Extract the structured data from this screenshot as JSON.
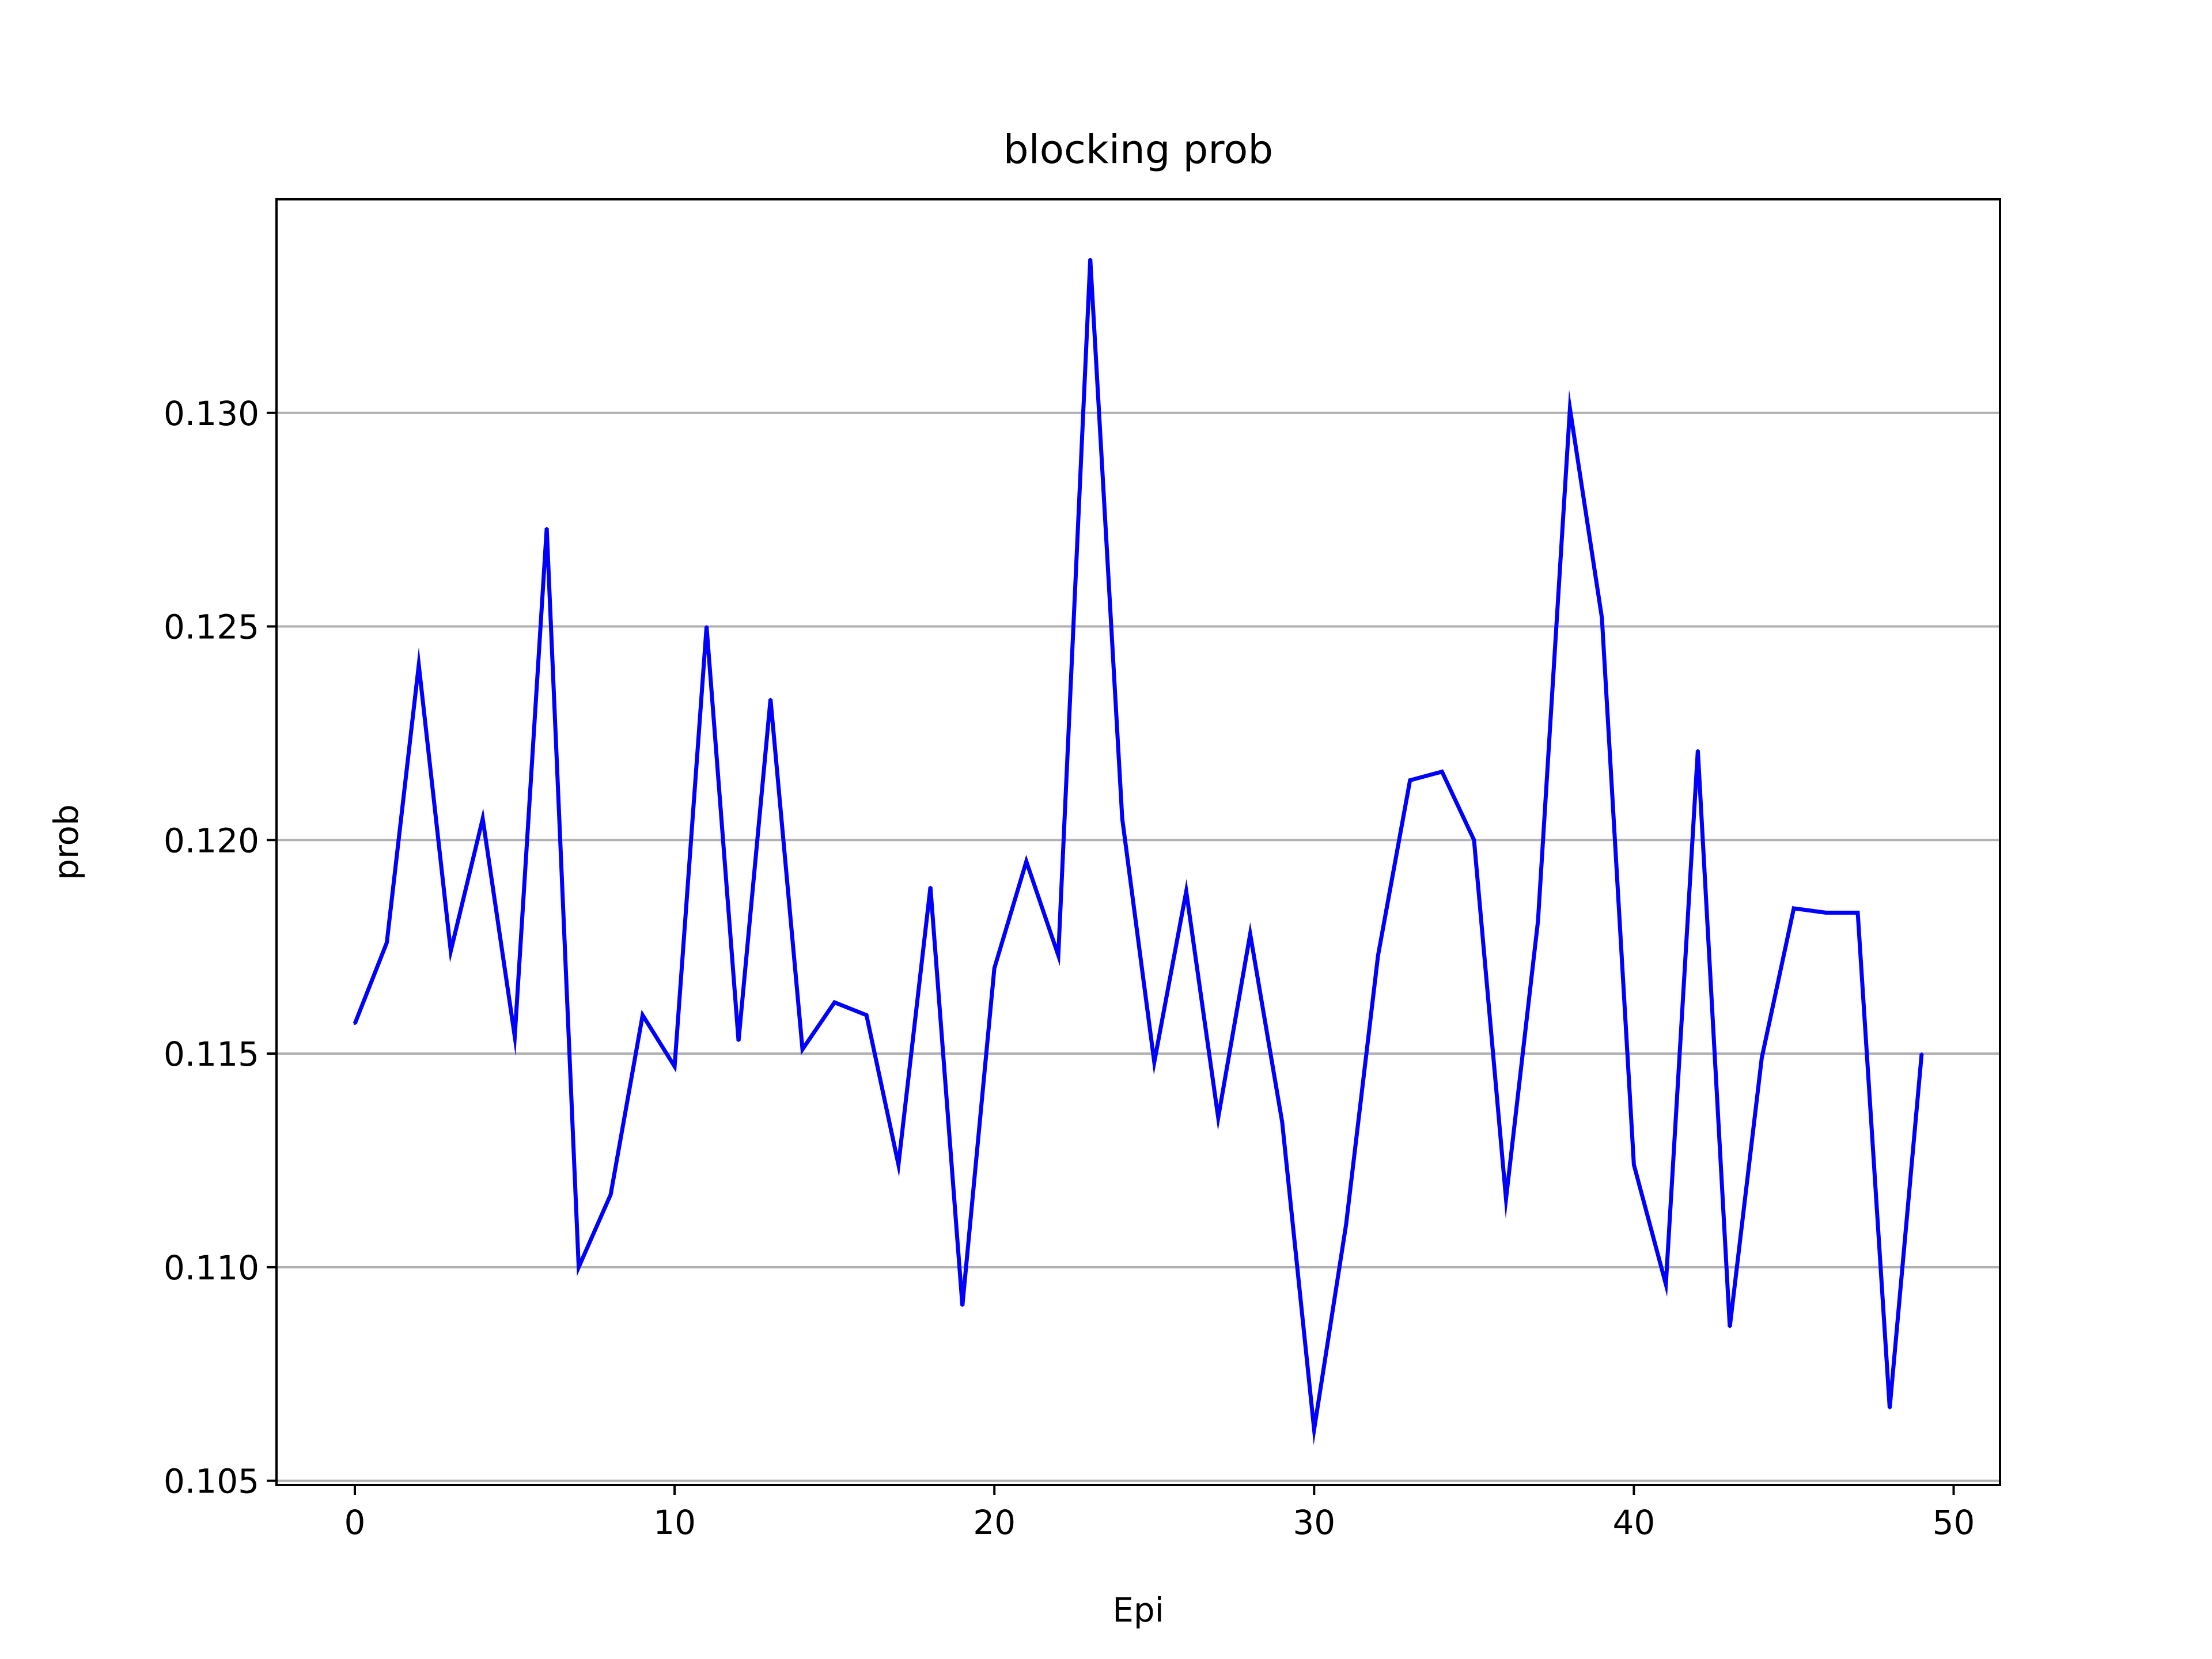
{
  "chart_data": {
    "type": "line",
    "title": "blocking prob",
    "xlabel": "Epi",
    "ylabel": "prob",
    "xlim": [
      -2.45,
      51.45
    ],
    "ylim": [
      0.1049,
      0.135
    ],
    "xticks": [
      0,
      10,
      20,
      30,
      40,
      50
    ],
    "xtick_labels": [
      "0",
      "10",
      "20",
      "30",
      "40",
      "50"
    ],
    "yticks": [
      0.105,
      0.11,
      0.115,
      0.12,
      0.125,
      0.13
    ],
    "ytick_labels": [
      "0.105",
      "0.110",
      "0.115",
      "0.120",
      "0.125",
      "0.130"
    ],
    "grid": "y-axis only",
    "legend": "none",
    "series": [
      {
        "color": "#0000ff",
        "x": [
          0,
          1,
          2,
          3,
          4,
          5,
          6,
          7,
          8,
          9,
          10,
          11,
          12,
          13,
          14,
          15,
          16,
          17,
          18,
          19,
          20,
          21,
          22,
          23,
          24,
          25,
          26,
          27,
          28,
          29,
          30,
          31,
          32,
          33,
          34,
          35,
          36,
          37,
          38,
          39,
          40,
          41,
          42,
          43,
          44,
          45,
          46,
          47,
          48,
          49
        ],
        "y": [
          0.1157,
          0.1176,
          0.1241,
          0.1174,
          0.1205,
          0.1154,
          0.1273,
          0.11,
          0.1117,
          0.1159,
          0.1147,
          0.125,
          0.1153,
          0.1233,
          0.1151,
          0.1162,
          0.1159,
          0.1124,
          0.1189,
          0.1091,
          0.117,
          0.1195,
          0.1173,
          0.1336,
          0.1205,
          0.1148,
          0.1188,
          0.1135,
          0.1178,
          0.1134,
          0.1062,
          0.111,
          0.1173,
          0.1214,
          0.1216,
          0.12,
          0.1116,
          0.1181,
          0.1301,
          0.1252,
          0.1124,
          0.1096,
          0.1221,
          0.1086,
          0.1149,
          0.1184,
          0.1183,
          0.1183,
          0.1067,
          0.115
        ]
      }
    ]
  }
}
